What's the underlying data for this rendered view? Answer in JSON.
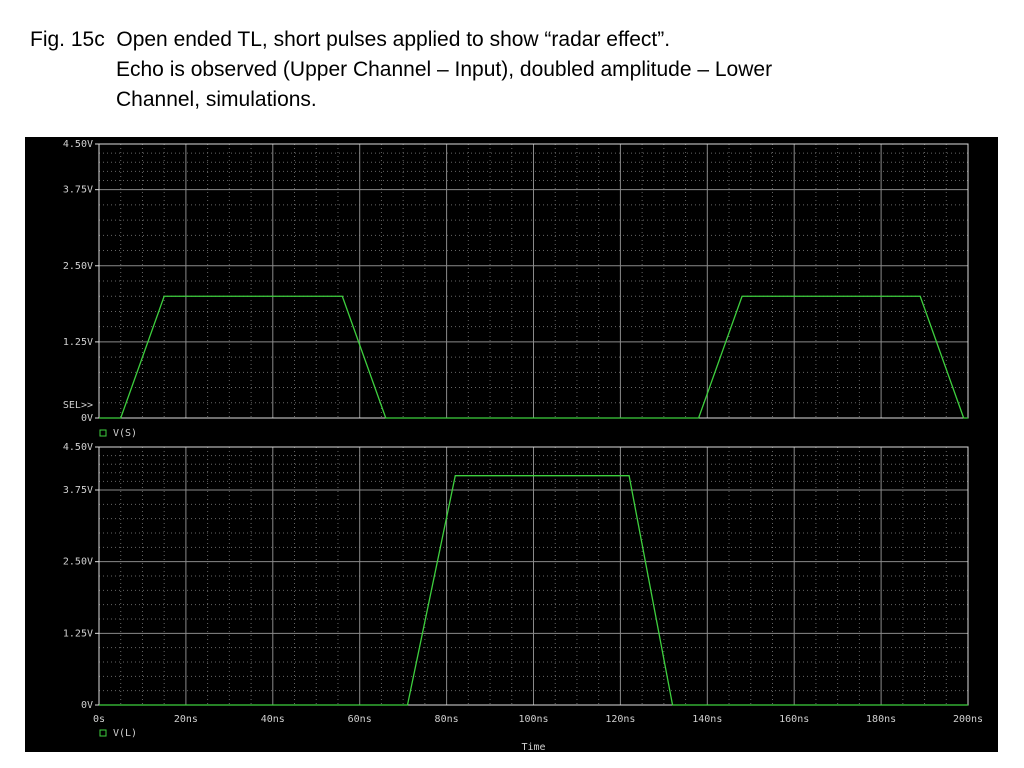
{
  "caption": [
    "Fig. 15c  Open ended TL, short pulses applied to show “radar effect”.",
    "Echo is observed (Upper Channel – Input), doubled amplitude – Lower",
    "Channel, simulations."
  ],
  "chart_data": [
    {
      "type": "line",
      "annotations": [
        "SEL>>"
      ],
      "x": [
        0,
        5,
        15,
        56,
        66,
        138,
        148,
        189,
        199,
        200
      ],
      "series": [
        {
          "name": "V(S)",
          "color": "#3ecf3e",
          "values": [
            0,
            0,
            2,
            2,
            0,
            0,
            2,
            2,
            0,
            0
          ]
        }
      ],
      "xlim": [
        0,
        200
      ],
      "xticks": [
        0,
        20,
        40,
        60,
        80,
        100,
        120,
        140,
        160,
        180,
        200
      ],
      "ylim": [
        0,
        4.5
      ],
      "yticks": [
        {
          "value": 0,
          "label": "0V"
        },
        {
          "value": 1.25,
          "label": "1.25V"
        },
        {
          "value": 2.5,
          "label": "2.50V"
        },
        {
          "value": 3.75,
          "label": "3.75V"
        },
        {
          "value": 4.5,
          "label": "4.50V"
        }
      ],
      "grid": true
    },
    {
      "type": "line",
      "x_label": "Time",
      "x": [
        0,
        71,
        82,
        122,
        132,
        200
      ],
      "series": [
        {
          "name": "V(L)",
          "color": "#3ecf3e",
          "values": [
            0,
            0,
            4,
            4,
            0,
            0
          ]
        }
      ],
      "xlim": [
        0,
        200
      ],
      "xticks": [
        {
          "value": 0,
          "label": "0s"
        },
        {
          "value": 20,
          "label": "20ns"
        },
        {
          "value": 40,
          "label": "40ns"
        },
        {
          "value": 60,
          "label": "60ns"
        },
        {
          "value": 80,
          "label": "80ns"
        },
        {
          "value": 100,
          "label": "100ns"
        },
        {
          "value": 120,
          "label": "120ns"
        },
        {
          "value": 140,
          "label": "140ns"
        },
        {
          "value": 160,
          "label": "160ns"
        },
        {
          "value": 180,
          "label": "180ns"
        },
        {
          "value": 200,
          "label": "200ns"
        }
      ],
      "ylim": [
        0,
        4.5
      ],
      "yticks": [
        {
          "value": 0,
          "label": "0V"
        },
        {
          "value": 1.25,
          "label": "1.25V"
        },
        {
          "value": 2.5,
          "label": "2.50V"
        },
        {
          "value": 3.75,
          "label": "3.75V"
        },
        {
          "value": 4.5,
          "label": "4.50V"
        }
      ],
      "grid": true
    }
  ]
}
